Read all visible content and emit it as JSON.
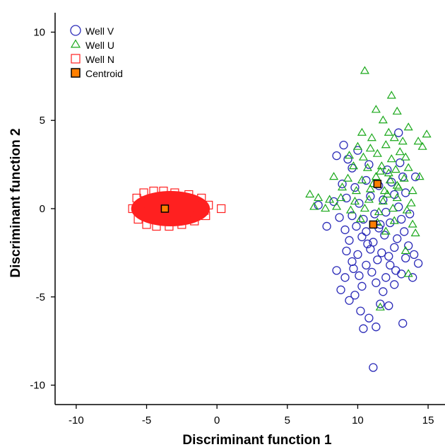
{
  "chart_data": {
    "type": "scatter",
    "xlabel": "Discriminant function 1",
    "ylabel": "Discriminant function 2",
    "xlim": [
      -11.5,
      16.2
    ],
    "ylim": [
      -11.1,
      11.1
    ],
    "xticks": [
      -10,
      -5,
      0,
      5,
      10,
      15
    ],
    "yticks": [
      -10,
      -5,
      0,
      5,
      10
    ],
    "grid": false,
    "legend_position": "top-left",
    "colors": {
      "well_v": "#2b2bb8",
      "well_u": "#1aa81a",
      "well_n": "#ff2020",
      "centroid_fill": "#ff7f00"
    },
    "series": [
      {
        "name": "Well V",
        "marker": "circle",
        "color": "#2b2bb8",
        "points": [
          [
            11.1,
            -9.0
          ],
          [
            10.4,
            -6.8
          ],
          [
            11.3,
            -6.7
          ],
          [
            13.2,
            -6.5
          ],
          [
            10.8,
            -6.2
          ],
          [
            12.2,
            -5.5
          ],
          [
            9.4,
            -5.2
          ],
          [
            11.6,
            -5.4
          ],
          [
            8.8,
            -4.6
          ],
          [
            9.8,
            -4.9
          ],
          [
            10.3,
            -4.4
          ],
          [
            11.8,
            -4.7
          ],
          [
            12.6,
            -4.3
          ],
          [
            8.5,
            -3.5
          ],
          [
            9.1,
            -3.9
          ],
          [
            10.1,
            -3.8
          ],
          [
            11.0,
            -3.6
          ],
          [
            12.0,
            -3.9
          ],
          [
            13.1,
            -3.7
          ],
          [
            13.9,
            -3.9
          ],
          [
            14.3,
            -3.1
          ],
          [
            9.6,
            -3.0
          ],
          [
            10.6,
            -3.2
          ],
          [
            11.4,
            -2.9
          ],
          [
            12.3,
            -3.2
          ],
          [
            13.4,
            -2.8
          ],
          [
            9.2,
            -2.4
          ],
          [
            10.0,
            -2.6
          ],
          [
            10.9,
            -2.3
          ],
          [
            11.7,
            -2.5
          ],
          [
            12.6,
            -2.2
          ],
          [
            13.6,
            -2.1
          ],
          [
            14.0,
            -2.6
          ],
          [
            9.4,
            -1.8
          ],
          [
            10.3,
            -1.6
          ],
          [
            11.1,
            -1.9
          ],
          [
            11.9,
            -1.5
          ],
          [
            12.8,
            -1.7
          ],
          [
            13.3,
            -1.3
          ],
          [
            9.1,
            -1.2
          ],
          [
            9.9,
            -1.0
          ],
          [
            10.6,
            -1.3
          ],
          [
            11.5,
            -1.1
          ],
          [
            12.3,
            -0.8
          ],
          [
            13.1,
            -0.6
          ],
          [
            7.8,
            -1.0
          ],
          [
            8.7,
            -0.5
          ],
          [
            9.6,
            -0.4
          ],
          [
            10.4,
            -0.6
          ],
          [
            11.2,
            -0.3
          ],
          [
            12.0,
            -0.2
          ],
          [
            12.9,
            0.1
          ],
          [
            13.7,
            -0.3
          ],
          [
            7.2,
            0.2
          ],
          [
            8.3,
            0.4
          ],
          [
            9.2,
            0.6
          ],
          [
            10.1,
            0.3
          ],
          [
            10.9,
            0.7
          ],
          [
            11.8,
            0.5
          ],
          [
            12.6,
            0.8
          ],
          [
            13.4,
            0.9
          ],
          [
            8.9,
            1.4
          ],
          [
            9.8,
            1.2
          ],
          [
            10.6,
            1.6
          ],
          [
            11.5,
            1.3
          ],
          [
            12.4,
            1.5
          ],
          [
            13.2,
            1.8
          ],
          [
            14.1,
            1.8
          ],
          [
            9.6,
            2.3
          ],
          [
            10.8,
            2.5
          ],
          [
            12.1,
            2.2
          ],
          [
            13.0,
            2.6
          ],
          [
            8.5,
            3.0
          ],
          [
            9.3,
            2.8
          ],
          [
            10.0,
            3.3
          ],
          [
            9.0,
            3.6
          ],
          [
            12.9,
            4.3
          ],
          [
            11.6,
            -0.9
          ],
          [
            10.7,
            -2.0
          ],
          [
            12.2,
            -2.7
          ],
          [
            11.3,
            -4.2
          ],
          [
            10.2,
            -5.8
          ],
          [
            9.7,
            -3.4
          ],
          [
            12.7,
            -3.5
          ]
        ]
      },
      {
        "name": "Well U",
        "marker": "triangle",
        "color": "#1aa81a",
        "points": [
          [
            10.5,
            7.8
          ],
          [
            12.4,
            6.4
          ],
          [
            11.3,
            5.6
          ],
          [
            12.8,
            5.5
          ],
          [
            11.8,
            5.0
          ],
          [
            13.6,
            4.6
          ],
          [
            12.2,
            4.3
          ],
          [
            14.9,
            4.2
          ],
          [
            10.3,
            4.3
          ],
          [
            11.0,
            4.0
          ],
          [
            12.6,
            4.0
          ],
          [
            13.2,
            3.8
          ],
          [
            14.3,
            3.8
          ],
          [
            10.0,
            3.5
          ],
          [
            10.9,
            3.4
          ],
          [
            12.0,
            3.6
          ],
          [
            13.0,
            3.2
          ],
          [
            14.6,
            3.5
          ],
          [
            9.4,
            3.0
          ],
          [
            10.4,
            2.9
          ],
          [
            11.4,
            3.1
          ],
          [
            12.4,
            2.8
          ],
          [
            13.4,
            2.9
          ],
          [
            9.7,
            2.4
          ],
          [
            10.7,
            2.3
          ],
          [
            11.7,
            2.4
          ],
          [
            12.7,
            2.2
          ],
          [
            13.6,
            2.3
          ],
          [
            8.3,
            1.8
          ],
          [
            9.3,
            1.7
          ],
          [
            10.3,
            1.6
          ],
          [
            11.3,
            1.8
          ],
          [
            12.3,
            1.6
          ],
          [
            13.3,
            1.7
          ],
          [
            14.4,
            1.8
          ],
          [
            8.9,
            1.2
          ],
          [
            9.9,
            1.0
          ],
          [
            10.9,
            1.1
          ],
          [
            11.9,
            1.0
          ],
          [
            12.9,
            1.2
          ],
          [
            13.9,
            1.0
          ],
          [
            6.6,
            0.8
          ],
          [
            7.2,
            0.6
          ],
          [
            8.0,
            0.5
          ],
          [
            8.8,
            0.6
          ],
          [
            9.8,
            0.4
          ],
          [
            10.8,
            0.5
          ],
          [
            11.8,
            0.4
          ],
          [
            12.8,
            0.6
          ],
          [
            13.8,
            0.3
          ],
          [
            6.9,
            0.1
          ],
          [
            7.7,
            0.0
          ],
          [
            8.5,
            0.1
          ],
          [
            9.5,
            -0.1
          ],
          [
            10.5,
            0.0
          ],
          [
            11.5,
            -0.2
          ],
          [
            12.5,
            0.0
          ],
          [
            13.5,
            -0.1
          ],
          [
            10.2,
            -0.6
          ],
          [
            11.4,
            -0.8
          ],
          [
            12.6,
            -0.7
          ],
          [
            13.9,
            -0.9
          ],
          [
            12.0,
            -1.3
          ],
          [
            14.1,
            -1.4
          ],
          [
            13.4,
            -2.4
          ],
          [
            11.6,
            -5.6
          ],
          [
            13.6,
            -3.7
          ],
          [
            12.1,
            0.8
          ],
          [
            11.1,
            1.4
          ],
          [
            12.2,
            2.0
          ],
          [
            11.6,
            2.1
          ],
          [
            12.8,
            1.3
          ]
        ]
      },
      {
        "name": "Well N",
        "marker": "square",
        "color": "#ff2020",
        "cloud": {
          "x_range": [
            -6.1,
            -0.5
          ],
          "y_range": [
            -1.0,
            1.0
          ]
        },
        "points": [
          [
            -6.0,
            0.0
          ],
          [
            -5.7,
            0.6
          ],
          [
            -5.6,
            -0.6
          ],
          [
            -5.2,
            0.9
          ],
          [
            -5.0,
            -0.9
          ],
          [
            -4.5,
            1.0
          ],
          [
            -4.3,
            -1.0
          ],
          [
            -3.8,
            1.0
          ],
          [
            -3.4,
            -1.0
          ],
          [
            -3.0,
            0.9
          ],
          [
            -2.5,
            -0.9
          ],
          [
            -2.0,
            0.8
          ],
          [
            -1.6,
            -0.7
          ],
          [
            -1.1,
            0.6
          ],
          [
            -0.8,
            -0.4
          ],
          [
            -0.6,
            0.2
          ],
          [
            0.3,
            0.0
          ],
          [
            -4.9,
            0.3
          ],
          [
            -4.1,
            -0.4
          ],
          [
            -3.0,
            0.3
          ],
          [
            -2.2,
            -0.2
          ],
          [
            -1.4,
            0.1
          ],
          [
            -5.4,
            0.0
          ],
          [
            -0.9,
            -0.1
          ]
        ]
      }
    ],
    "centroids": [
      {
        "group": "Well N",
        "x": -3.7,
        "y": 0.0
      },
      {
        "group": "Well V",
        "x": 11.1,
        "y": -0.9
      },
      {
        "group": "Well U",
        "x": 11.4,
        "y": 1.4
      }
    ],
    "legend": [
      {
        "label": "Well V",
        "marker": "circle",
        "color": "#2b2bb8"
      },
      {
        "label": "Well U",
        "marker": "triangle",
        "color": "#1aa81a"
      },
      {
        "label": "Well N",
        "marker": "square",
        "color": "#ff2020"
      },
      {
        "label": "Centroid",
        "marker": "filled-square",
        "color": "#ff7f00"
      }
    ]
  }
}
